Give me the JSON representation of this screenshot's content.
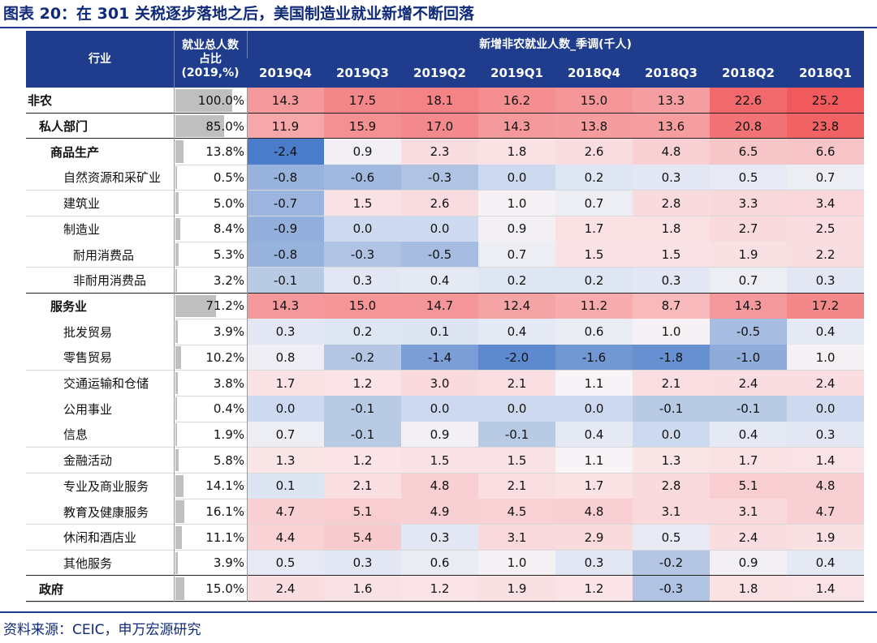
{
  "title": "图表 20：在 301 关税逐步落地之后，美国制造业就业新增不断回落",
  "source": "资料来源：CEIC，申万宏源研究",
  "colors": {
    "header_bg": "#1f3d8c",
    "title": "#0f2a78",
    "positive": "#f05a5a",
    "negative": "#4a7cc9",
    "share_bar": "#bfbfbf"
  },
  "chart_data": {
    "type": "table",
    "header": {
      "industry": "行业",
      "share": [
        "就业总人数",
        "占比",
        "(2019,%)"
      ],
      "group": "新增非农就业人数_季调(千人)"
    },
    "quarters": [
      "2019Q4",
      "2019Q3",
      "2019Q2",
      "2019Q1",
      "2018Q4",
      "2018Q3",
      "2018Q2",
      "2018Q1"
    ],
    "rows": [
      {
        "label": "非农",
        "share": "100.0%",
        "share_value": 100.0,
        "level": 0,
        "bold": true,
        "values": [
          "14.3",
          "17.5",
          "18.1",
          "16.2",
          "15.0",
          "13.3",
          "22.6",
          "25.2"
        ]
      },
      {
        "label": "私人部门",
        "share": "85.0%",
        "share_value": 85.0,
        "level": 1,
        "bold": true,
        "values": [
          "11.9",
          "15.9",
          "17.0",
          "14.3",
          "13.8",
          "13.6",
          "20.8",
          "23.8"
        ]
      },
      {
        "label": "商品生产",
        "share": "13.8%",
        "share_value": 13.8,
        "level": 2,
        "bold": true,
        "values": [
          "-2.4",
          "0.9",
          "2.3",
          "1.8",
          "2.6",
          "4.8",
          "6.5",
          "6.6"
        ]
      },
      {
        "label": "自然资源和采矿业",
        "share": "0.5%",
        "share_value": 0.5,
        "level": 3,
        "bold": false,
        "values": [
          "-0.8",
          "-0.6",
          "-0.3",
          "0.0",
          "0.2",
          "0.3",
          "0.5",
          "0.7"
        ]
      },
      {
        "label": "建筑业",
        "share": "5.0%",
        "share_value": 5.0,
        "level": 3,
        "bold": false,
        "values": [
          "-0.7",
          "1.5",
          "2.6",
          "1.0",
          "0.7",
          "2.8",
          "3.3",
          "3.4"
        ]
      },
      {
        "label": "制造业",
        "share": "8.4%",
        "share_value": 8.4,
        "level": 3,
        "bold": false,
        "values": [
          "-0.9",
          "0.0",
          "0.0",
          "0.9",
          "1.7",
          "1.8",
          "2.7",
          "2.5"
        ]
      },
      {
        "label": "耐用消费品",
        "share": "5.3%",
        "share_value": 5.3,
        "level": 4,
        "bold": false,
        "values": [
          "-0.8",
          "-0.3",
          "-0.5",
          "0.7",
          "1.5",
          "1.5",
          "1.9",
          "2.2"
        ]
      },
      {
        "label": "非耐用消费品",
        "share": "3.2%",
        "share_value": 3.2,
        "level": 4,
        "bold": false,
        "values": [
          "-0.1",
          "0.3",
          "0.4",
          "0.2",
          "0.2",
          "0.3",
          "0.7",
          "0.3"
        ]
      },
      {
        "label": "服务业",
        "share": "71.2%",
        "share_value": 71.2,
        "level": 2,
        "bold": true,
        "values": [
          "14.3",
          "15.0",
          "14.7",
          "12.4",
          "11.2",
          "8.7",
          "14.3",
          "17.2"
        ]
      },
      {
        "label": "批发贸易",
        "share": "3.9%",
        "share_value": 3.9,
        "level": 3,
        "bold": false,
        "values": [
          "0.3",
          "0.2",
          "0.1",
          "0.4",
          "0.6",
          "1.0",
          "-0.5",
          "0.4"
        ]
      },
      {
        "label": "零售贸易",
        "share": "10.2%",
        "share_value": 10.2,
        "level": 3,
        "bold": false,
        "values": [
          "0.8",
          "-0.2",
          "-1.4",
          "-2.0",
          "-1.6",
          "-1.8",
          "-1.0",
          "1.0"
        ]
      },
      {
        "label": "交通运输和仓储",
        "share": "3.8%",
        "share_value": 3.8,
        "level": 3,
        "bold": false,
        "values": [
          "1.7",
          "1.2",
          "3.0",
          "2.1",
          "1.1",
          "2.1",
          "2.4",
          "2.4"
        ]
      },
      {
        "label": "公用事业",
        "share": "0.4%",
        "share_value": 0.4,
        "level": 3,
        "bold": false,
        "values": [
          "0.0",
          "-0.1",
          "0.0",
          "0.0",
          "0.0",
          "-0.1",
          "-0.1",
          "0.0"
        ]
      },
      {
        "label": "信息",
        "share": "1.9%",
        "share_value": 1.9,
        "level": 3,
        "bold": false,
        "values": [
          "0.7",
          "-0.1",
          "0.9",
          "-0.1",
          "0.4",
          "0.0",
          "0.4",
          "0.3"
        ]
      },
      {
        "label": "金融活动",
        "share": "5.8%",
        "share_value": 5.8,
        "level": 3,
        "bold": false,
        "values": [
          "1.3",
          "1.2",
          "1.5",
          "1.5",
          "1.1",
          "1.3",
          "1.7",
          "1.4"
        ]
      },
      {
        "label": "专业及商业服务",
        "share": "14.1%",
        "share_value": 14.1,
        "level": 3,
        "bold": false,
        "values": [
          "0.1",
          "2.1",
          "4.8",
          "2.1",
          "1.7",
          "2.8",
          "5.1",
          "4.8"
        ]
      },
      {
        "label": "教育及健康服务",
        "share": "16.1%",
        "share_value": 16.1,
        "level": 3,
        "bold": false,
        "values": [
          "4.7",
          "5.1",
          "4.9",
          "4.5",
          "4.8",
          "3.1",
          "3.1",
          "4.7"
        ]
      },
      {
        "label": "休闲和酒店业",
        "share": "11.1%",
        "share_value": 11.1,
        "level": 3,
        "bold": false,
        "values": [
          "4.4",
          "5.4",
          "0.3",
          "3.1",
          "2.9",
          "0.5",
          "2.4",
          "1.9"
        ]
      },
      {
        "label": "其他服务",
        "share": "3.9%",
        "share_value": 3.9,
        "level": 3,
        "bold": false,
        "values": [
          "0.5",
          "0.3",
          "0.6",
          "1.0",
          "0.3",
          "-0.2",
          "0.9",
          "0.4"
        ]
      },
      {
        "label": "政府",
        "share": "15.0%",
        "share_value": 15.0,
        "level": 1,
        "bold": true,
        "values": [
          "2.4",
          "1.6",
          "1.2",
          "1.9",
          "1.2",
          "-0.3",
          "1.8",
          "1.4"
        ]
      }
    ]
  }
}
